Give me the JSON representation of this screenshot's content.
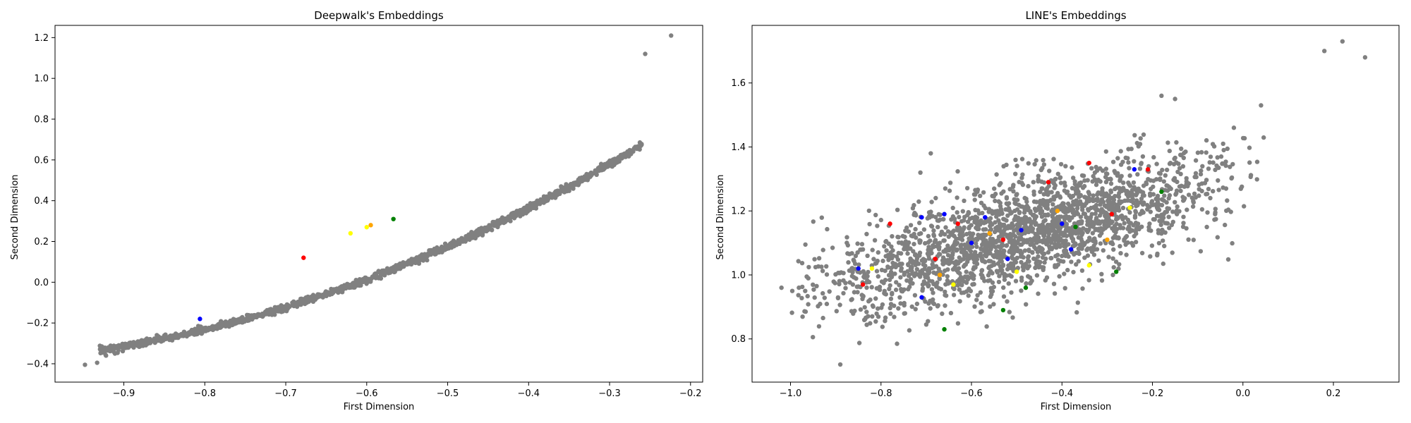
{
  "chart_data": [
    {
      "type": "scatter",
      "title": "Deepwalk's Embeddings",
      "xlabel": "First Dimension",
      "ylabel": "Second Dimension",
      "xlim": [
        -0.985,
        -0.185
      ],
      "ylim": [
        -0.49,
        1.26
      ],
      "xticks": [
        -0.9,
        -0.8,
        -0.7,
        -0.6,
        -0.5,
        -0.4,
        -0.3,
        -0.2
      ],
      "xtick_labels": [
        "−0.9",
        "−0.8",
        "−0.7",
        "−0.6",
        "−0.5",
        "−0.4",
        "−0.3",
        "−0.2"
      ],
      "yticks": [
        -0.4,
        -0.2,
        0.0,
        0.2,
        0.4,
        0.6,
        0.8,
        1.0,
        1.2
      ],
      "ytick_labels": [
        "−0.4",
        "−0.2",
        "0.0",
        "0.2",
        "0.4",
        "0.6",
        "0.8",
        "1.0",
        "1.2"
      ],
      "grid": false,
      "colors": {
        "background": "#808080",
        "red": "#ff0000",
        "blue": "#0000ff",
        "green": "#008000",
        "yellow": "#ffff00",
        "orange": "#ffa500"
      },
      "bulk_points": {
        "color": "#808080",
        "description_curve": "y ≈ 1.39 + 3.10x + 1.34x²",
        "x_range": [
          -0.93,
          -0.26
        ],
        "count": 1500
      },
      "highlighted_points": [
        {
          "x": -0.678,
          "y": 0.12,
          "color": "#ff0000"
        },
        {
          "x": -0.806,
          "y": -0.18,
          "color": "#0000ff"
        },
        {
          "x": -0.567,
          "y": 0.31,
          "color": "#008000"
        },
        {
          "x": -0.6,
          "y": 0.27,
          "color": "#ffff00"
        },
        {
          "x": -0.595,
          "y": 0.28,
          "color": "#ffa500"
        },
        {
          "x": -0.62,
          "y": 0.24,
          "color": "#ffff00"
        }
      ],
      "outliers": [
        {
          "x": -0.948,
          "y": -0.405
        },
        {
          "x": -0.933,
          "y": -0.395
        },
        {
          "x": -0.922,
          "y": -0.36
        },
        {
          "x": -0.911,
          "y": -0.35
        },
        {
          "x": -0.224,
          "y": 1.21
        },
        {
          "x": -0.256,
          "y": 1.12
        }
      ]
    },
    {
      "type": "scatter",
      "title": "LINE's Embeddings",
      "xlabel": "First Dimension",
      "ylabel": "Second Dimension",
      "xlim": [
        -1.085,
        0.345
      ],
      "ylim": [
        0.665,
        1.78
      ],
      "xticks": [
        -1.0,
        -0.8,
        -0.6,
        -0.4,
        -0.2,
        0.0,
        0.2
      ],
      "xtick_labels": [
        "−1.0",
        "−0.8",
        "−0.6",
        "−0.4",
        "−0.2",
        "0.0",
        "0.2"
      ],
      "yticks": [
        0.8,
        1.0,
        1.2,
        1.4,
        1.6
      ],
      "ytick_labels": [
        "0.8",
        "1.0",
        "1.2",
        "1.4",
        "1.6"
      ],
      "grid": false,
      "colors": {
        "background": "#808080",
        "red": "#ff0000",
        "blue": "#0000ff",
        "green": "#008000",
        "yellow": "#ffff00",
        "orange": "#ffa500"
      },
      "bulk_points": {
        "color": "#808080",
        "description_cloud": "elongated cloud along y ≈ 1.31 + 0.38x",
        "x_range": [
          -0.95,
          -0.05
        ],
        "count": 2300
      },
      "highlighted_points": [
        {
          "x": -0.78,
          "y": 1.16,
          "color": "#ff0000"
        },
        {
          "x": -0.63,
          "y": 1.16,
          "color": "#ff0000"
        },
        {
          "x": -0.43,
          "y": 1.29,
          "color": "#ff0000"
        },
        {
          "x": -0.34,
          "y": 1.35,
          "color": "#ff0000"
        },
        {
          "x": -0.21,
          "y": 1.33,
          "color": "#ff0000"
        },
        {
          "x": -0.84,
          "y": 0.97,
          "color": "#ff0000"
        },
        {
          "x": -0.53,
          "y": 1.11,
          "color": "#ff0000"
        },
        {
          "x": -0.29,
          "y": 1.19,
          "color": "#ff0000"
        },
        {
          "x": -0.68,
          "y": 1.05,
          "color": "#ff0000"
        },
        {
          "x": -0.85,
          "y": 1.02,
          "color": "#0000ff"
        },
        {
          "x": -0.71,
          "y": 1.18,
          "color": "#0000ff"
        },
        {
          "x": -0.66,
          "y": 1.19,
          "color": "#0000ff"
        },
        {
          "x": -0.57,
          "y": 1.18,
          "color": "#0000ff"
        },
        {
          "x": -0.49,
          "y": 1.14,
          "color": "#0000ff"
        },
        {
          "x": -0.4,
          "y": 1.16,
          "color": "#0000ff"
        },
        {
          "x": -0.24,
          "y": 1.33,
          "color": "#0000ff"
        },
        {
          "x": -0.71,
          "y": 0.93,
          "color": "#0000ff"
        },
        {
          "x": -0.6,
          "y": 1.1,
          "color": "#0000ff"
        },
        {
          "x": -0.52,
          "y": 1.05,
          "color": "#0000ff"
        },
        {
          "x": -0.38,
          "y": 1.08,
          "color": "#0000ff"
        },
        {
          "x": -0.66,
          "y": 0.83,
          "color": "#008000"
        },
        {
          "x": -0.53,
          "y": 0.89,
          "color": "#008000"
        },
        {
          "x": -0.48,
          "y": 0.96,
          "color": "#008000"
        },
        {
          "x": -0.28,
          "y": 1.01,
          "color": "#008000"
        },
        {
          "x": -0.18,
          "y": 1.26,
          "color": "#008000"
        },
        {
          "x": -0.37,
          "y": 1.15,
          "color": "#008000"
        },
        {
          "x": -0.82,
          "y": 1.02,
          "color": "#ffff00"
        },
        {
          "x": -0.64,
          "y": 0.97,
          "color": "#ffff00"
        },
        {
          "x": -0.5,
          "y": 1.01,
          "color": "#ffff00"
        },
        {
          "x": -0.34,
          "y": 1.03,
          "color": "#ffff00"
        },
        {
          "x": -0.25,
          "y": 1.21,
          "color": "#ffff00"
        },
        {
          "x": -0.56,
          "y": 1.13,
          "color": "#ffa500"
        },
        {
          "x": -0.41,
          "y": 1.2,
          "color": "#ffa500"
        },
        {
          "x": -0.3,
          "y": 1.11,
          "color": "#ffa500"
        },
        {
          "x": -0.67,
          "y": 1.0,
          "color": "#ffa500"
        }
      ],
      "outliers": [
        {
          "x": -1.02,
          "y": 0.96
        },
        {
          "x": -0.89,
          "y": 0.72
        },
        {
          "x": -0.69,
          "y": 1.38
        },
        {
          "x": 0.18,
          "y": 1.7
        },
        {
          "x": 0.22,
          "y": 1.73
        },
        {
          "x": 0.27,
          "y": 1.68
        },
        {
          "x": 0.04,
          "y": 1.53
        },
        {
          "x": -0.15,
          "y": 1.55
        },
        {
          "x": -0.18,
          "y": 1.56
        },
        {
          "x": -0.02,
          "y": 1.46
        }
      ]
    }
  ]
}
